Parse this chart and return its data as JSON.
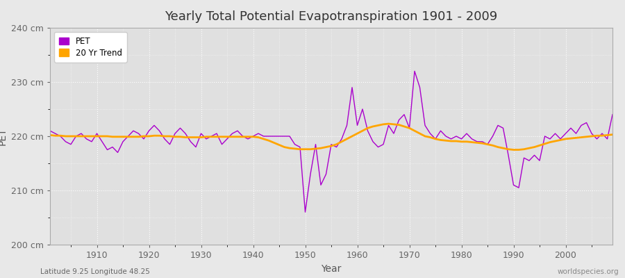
{
  "title": "Yearly Total Potential Evapotranspiration 1901 - 2009",
  "ylabel": "PET",
  "xlabel": "Year",
  "subtitle_left": "Latitude 9.25 Longitude 48.25",
  "watermark": "worldspecies.org",
  "ylim": [
    200,
    240
  ],
  "xlim": [
    1901,
    2009
  ],
  "yticks": [
    200,
    210,
    220,
    230,
    240
  ],
  "ytick_labels": [
    "200 cm",
    "210 cm",
    "220 cm",
    "230 cm",
    "240 cm"
  ],
  "xticks": [
    1910,
    1920,
    1930,
    1940,
    1950,
    1960,
    1970,
    1980,
    1990,
    2000
  ],
  "pet_color": "#aa00cc",
  "trend_color": "#ffa500",
  "bg_color": "#e8e8e8",
  "plot_bg_color": "#e0e0e0",
  "grid_color": "#ffffff",
  "legend_labels": [
    "PET",
    "20 Yr Trend"
  ],
  "years": [
    1901,
    1902,
    1903,
    1904,
    1905,
    1906,
    1907,
    1908,
    1909,
    1910,
    1911,
    1912,
    1913,
    1914,
    1915,
    1916,
    1917,
    1918,
    1919,
    1920,
    1921,
    1922,
    1923,
    1924,
    1925,
    1926,
    1927,
    1928,
    1929,
    1930,
    1931,
    1932,
    1933,
    1934,
    1935,
    1936,
    1937,
    1938,
    1939,
    1940,
    1941,
    1942,
    1943,
    1944,
    1945,
    1946,
    1947,
    1948,
    1949,
    1950,
    1951,
    1952,
    1953,
    1954,
    1955,
    1956,
    1957,
    1958,
    1959,
    1960,
    1961,
    1962,
    1963,
    1964,
    1965,
    1966,
    1967,
    1968,
    1969,
    1970,
    1971,
    1972,
    1973,
    1974,
    1975,
    1976,
    1977,
    1978,
    1979,
    1980,
    1981,
    1982,
    1983,
    1984,
    1985,
    1986,
    1987,
    1988,
    1989,
    1990,
    1991,
    1992,
    1993,
    1994,
    1995,
    1996,
    1997,
    1998,
    1999,
    2000,
    2001,
    2002,
    2003,
    2004,
    2005,
    2006,
    2007,
    2008,
    2009
  ],
  "pet_values": [
    221.0,
    220.5,
    220.0,
    219.0,
    218.5,
    220.0,
    220.5,
    219.5,
    219.0,
    220.5,
    219.0,
    217.5,
    218.0,
    217.0,
    219.0,
    220.0,
    221.0,
    220.5,
    219.5,
    221.0,
    222.0,
    221.0,
    219.5,
    218.5,
    220.5,
    221.5,
    220.5,
    219.0,
    218.0,
    220.5,
    219.5,
    220.0,
    220.5,
    218.5,
    219.5,
    220.5,
    221.0,
    220.0,
    219.5,
    220.0,
    220.5,
    220.0,
    220.0,
    220.0,
    220.0,
    220.0,
    220.0,
    218.5,
    218.0,
    206.0,
    213.0,
    218.5,
    211.0,
    213.0,
    218.5,
    218.0,
    219.5,
    222.0,
    229.0,
    222.0,
    225.0,
    221.0,
    219.0,
    218.0,
    218.5,
    222.0,
    220.5,
    223.0,
    224.0,
    221.5,
    232.0,
    229.0,
    222.0,
    220.5,
    219.5,
    221.0,
    220.0,
    219.5,
    220.0,
    219.5,
    220.5,
    219.5,
    219.0,
    219.0,
    218.5,
    220.0,
    222.0,
    221.5,
    216.5,
    211.0,
    210.5,
    216.0,
    215.5,
    216.5,
    215.5,
    220.0,
    219.5,
    220.5,
    219.5,
    220.5,
    221.5,
    220.5,
    222.0,
    222.5,
    220.5,
    219.5,
    220.5,
    219.5,
    224.0
  ],
  "trend_values": [
    220.2,
    220.1,
    220.1,
    220.0,
    220.0,
    220.0,
    220.0,
    220.0,
    220.0,
    220.0,
    220.0,
    220.0,
    219.9,
    219.9,
    219.9,
    219.9,
    219.9,
    219.9,
    220.0,
    220.0,
    220.1,
    220.1,
    220.0,
    220.0,
    219.9,
    219.9,
    219.8,
    219.8,
    219.8,
    219.8,
    219.9,
    219.9,
    219.9,
    219.9,
    219.9,
    219.9,
    219.9,
    219.9,
    219.9,
    219.9,
    219.8,
    219.5,
    219.2,
    218.8,
    218.4,
    218.0,
    217.8,
    217.7,
    217.6,
    217.6,
    217.6,
    217.7,
    217.8,
    218.0,
    218.2,
    218.5,
    219.0,
    219.5,
    220.0,
    220.5,
    221.0,
    221.5,
    221.8,
    222.0,
    222.2,
    222.3,
    222.2,
    222.1,
    221.8,
    221.5,
    221.0,
    220.5,
    220.0,
    219.8,
    219.5,
    219.3,
    219.2,
    219.1,
    219.1,
    219.0,
    219.0,
    218.9,
    218.8,
    218.7,
    218.5,
    218.3,
    218.0,
    217.8,
    217.6,
    217.5,
    217.5,
    217.6,
    217.8,
    218.0,
    218.3,
    218.6,
    218.9,
    219.1,
    219.3,
    219.5,
    219.6,
    219.7,
    219.8,
    219.9,
    220.0,
    220.1,
    220.1,
    220.2,
    220.3
  ]
}
